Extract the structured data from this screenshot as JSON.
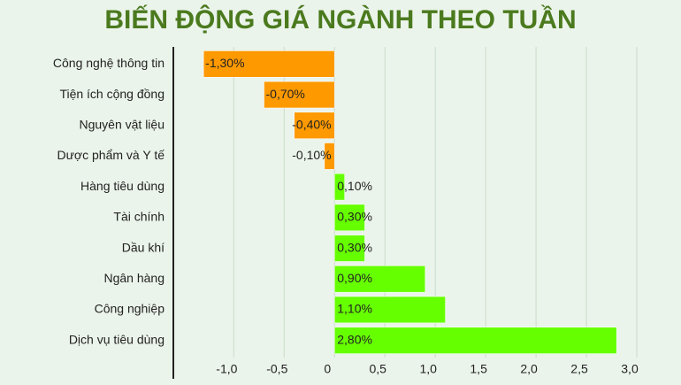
{
  "chart_data": {
    "type": "barh",
    "title": "BIẾN ĐỘNG GIÁ NGÀNH THEO TUẦN",
    "categories": [
      "Công nghệ thông tin",
      "Tiện ích cộng đồng",
      "Nguyên vật liệu",
      "Dược phẩm và Y tế",
      "Hàng tiêu dùng",
      "Tài chính",
      "Dầu khí",
      "Ngân hàng",
      "Công nghiệp",
      "Dịch vụ tiêu dùng"
    ],
    "values": [
      -1.3,
      -0.7,
      -0.4,
      -0.1,
      0.1,
      0.3,
      0.3,
      0.9,
      1.1,
      2.8
    ],
    "value_labels": [
      "-1,30%",
      "-0,70%",
      "-0,40%",
      "-0,10%",
      "0,10%",
      "0,30%",
      "0,30%",
      "0,90%",
      "1,10%",
      "2,80%"
    ],
    "negative_color": "#ff9900",
    "positive_color": "#66ff00",
    "xlim": [
      -1.6,
      3.0
    ],
    "xticks": [
      {
        "value": -1,
        "label": "-1,0"
      },
      {
        "value": -0.5,
        "label": "-0,5"
      },
      0,
      {
        "value": 0.5,
        "label": "0,5"
      },
      {
        "value": 1,
        "label": "1,0"
      },
      {
        "value": 1.5,
        "label": "1,5"
      },
      {
        "value": 2,
        "label": "2,0"
      },
      {
        "value": 2.5,
        "label": "2,5"
      },
      {
        "value": 3,
        "label": "3,0"
      }
    ],
    "grid": true
  }
}
